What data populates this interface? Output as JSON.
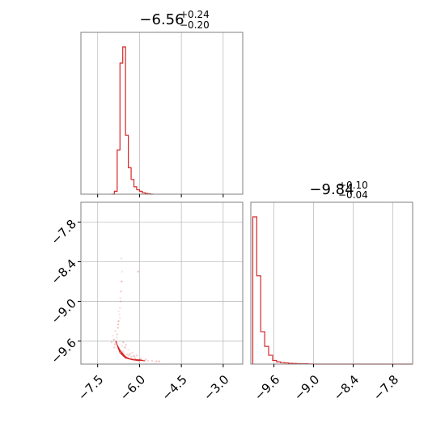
{
  "chart_data": {
    "type": "corner",
    "color": "#d62728",
    "parameters": [
      {
        "median": "−6.56",
        "upper_err": "+0.24",
        "lower_err": "−0.20",
        "range": [
          -8.1,
          -2.3
        ],
        "ticks": [
          -7.5,
          -6.0,
          -4.5,
          -3.0
        ],
        "tick_labels": [
          "−7.5",
          "−6.0",
          "−4.5",
          "−3.0"
        ],
        "histogram": {
          "edges": [
            -7.0,
            -6.9,
            -6.8,
            -6.7,
            -6.6,
            -6.5,
            -6.4,
            -6.3,
            -6.2,
            -6.1,
            -6.0,
            -5.9,
            -5.8,
            -5.7,
            -5.6,
            -5.5
          ],
          "counts": [
            0.0,
            0.02,
            0.3,
            0.89,
            1.0,
            0.4,
            0.18,
            0.1,
            0.05,
            0.03,
            0.02,
            0.01,
            0.005,
            0.002,
            0.0
          ]
        }
      },
      {
        "median": "−9.84",
        "upper_err": "+0.10",
        "lower_err": "−0.04",
        "range": [
          -9.95,
          -7.5
        ],
        "ticks": [
          -9.6,
          -9.0,
          -8.4,
          -7.8
        ],
        "tick_labels": [
          "−9.6",
          "−9.0",
          "−8.4",
          "−7.8"
        ],
        "histogram": {
          "edges": [
            -9.92,
            -9.86,
            -9.8,
            -9.74,
            -9.68,
            -9.62,
            -9.56,
            -9.5,
            -9.44,
            -9.38,
            -9.32,
            -9.26,
            -9.2,
            -9.14,
            -9.08,
            -9.02,
            -7.5
          ],
          "counts": [
            1.0,
            0.6,
            0.22,
            0.12,
            0.06,
            0.025,
            0.015,
            0.01,
            0.008,
            0.005,
            0.004,
            0.003,
            0.002,
            0.002,
            0.001,
            0.0
          ]
        }
      }
    ],
    "joint": {
      "contours": [
        [
          [
            -6.85,
            -9.6
          ],
          [
            -6.7,
            -9.78
          ],
          [
            -6.5,
            -9.86
          ],
          [
            -6.2,
            -9.88
          ],
          [
            -5.9,
            -9.89
          ]
        ],
        [
          [
            -6.8,
            -9.66
          ],
          [
            -6.62,
            -9.8
          ],
          [
            -6.4,
            -9.87
          ],
          [
            -6.1,
            -9.89
          ],
          [
            -5.8,
            -9.9
          ]
        ],
        [
          [
            -6.78,
            -9.7
          ],
          [
            -6.55,
            -9.83
          ],
          [
            -6.3,
            -9.88
          ],
          [
            -6.0,
            -9.9
          ]
        ],
        [
          [
            -6.7,
            -9.74
          ],
          [
            -6.48,
            -9.85
          ],
          [
            -6.2,
            -9.89
          ]
        ]
      ],
      "samples": [
        [
          -6.85,
          -9.6
        ],
        [
          -6.82,
          -9.55
        ],
        [
          -6.8,
          -9.5
        ],
        [
          -6.78,
          -9.4
        ],
        [
          -6.75,
          -9.3
        ],
        [
          -6.72,
          -9.2
        ],
        [
          -6.7,
          -9.1
        ],
        [
          -6.68,
          -9.0
        ],
        [
          -6.66,
          -8.85
        ],
        [
          -6.64,
          -8.7
        ],
        [
          -6.62,
          -8.55
        ],
        [
          -6.65,
          -8.35
        ],
        [
          -6.9,
          -9.7
        ],
        [
          -6.88,
          -9.65
        ],
        [
          -6.75,
          -9.72
        ],
        [
          -6.6,
          -9.75
        ],
        [
          -6.45,
          -9.8
        ],
        [
          -6.3,
          -9.84
        ],
        [
          -6.15,
          -9.86
        ],
        [
          -6.0,
          -9.88
        ],
        [
          -5.85,
          -9.89
        ],
        [
          -5.7,
          -9.9
        ],
        [
          -5.55,
          -9.9
        ],
        [
          -5.4,
          -9.91
        ],
        [
          -5.3,
          -9.91
        ],
        [
          -6.95,
          -9.52
        ],
        [
          -6.87,
          -9.45
        ],
        [
          -7.0,
          -9.62
        ],
        [
          -6.58,
          -9.62
        ],
        [
          -6.52,
          -9.7
        ],
        [
          -6.4,
          -9.74
        ],
        [
          -6.25,
          -9.78
        ],
        [
          -6.1,
          -9.82
        ],
        [
          -6.05,
          -8.55
        ],
        [
          -6.76,
          -9.35
        ],
        [
          -6.7,
          -9.25
        ],
        [
          -5.95,
          -9.86
        ],
        [
          -5.78,
          -9.88
        ],
        [
          -6.35,
          -9.8
        ],
        [
          -6.2,
          -9.83
        ],
        [
          -6.74,
          -9.15
        ],
        [
          -6.69,
          -8.95
        ],
        [
          -6.48,
          -9.66
        ],
        [
          -6.92,
          -9.58
        ],
        [
          -6.83,
          -9.62
        ],
        [
          -6.62,
          -9.68
        ],
        [
          -6.57,
          -9.77
        ],
        [
          -6.4,
          -9.82
        ]
      ]
    }
  }
}
